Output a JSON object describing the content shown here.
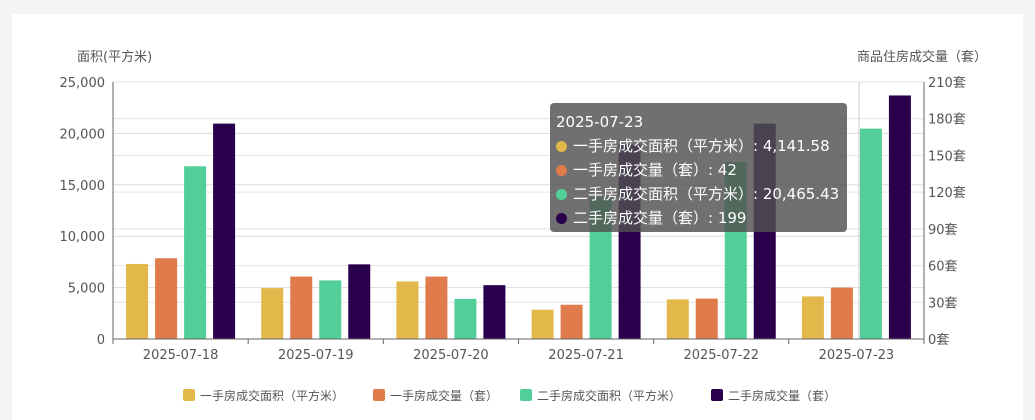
{
  "chart_data": {
    "type": "bar",
    "categories": [
      "2025-07-18",
      "2025-07-19",
      "2025-07-20",
      "2025-07-21",
      "2025-07-22",
      "2025-07-23"
    ],
    "y_left": {
      "label": "面积(平方米)",
      "ylim": [
        0,
        25000
      ],
      "ticks": [
        "0",
        "5,000",
        "10,000",
        "15,000",
        "20,000",
        "25,000"
      ]
    },
    "y_right": {
      "label": "商品住房成交量（套）",
      "ylim": [
        0,
        210
      ],
      "ticks": [
        "0套",
        "30套",
        "60套",
        "90套",
        "120套",
        "150套",
        "180套",
        "210套"
      ]
    },
    "series": [
      {
        "name": "一手房成交面积（平方米）",
        "axis": "left",
        "color": "#e3b84b",
        "values": [
          7300,
          4950,
          5600,
          2850,
          3850,
          4141.58
        ]
      },
      {
        "name": "一手房成交量（套）",
        "axis": "right",
        "color": "#e07b4c",
        "values": [
          66,
          51,
          51,
          28,
          33,
          42
        ]
      },
      {
        "name": "二手房成交面积（平方米）",
        "axis": "left",
        "color": "#52cf98",
        "values": [
          16800,
          5700,
          3900,
          13800,
          17200,
          20465.43
        ]
      },
      {
        "name": "二手房成交量（套）",
        "axis": "right",
        "color": "#2a004d",
        "values": [
          176,
          61,
          44,
          159,
          176,
          199
        ]
      }
    ],
    "grid": true,
    "legend_position": "bottom"
  },
  "tooltip": {
    "title": "2025-07-23",
    "rows": [
      {
        "label": "一手房成交面积（平方米）: 4,141.58",
        "color": "#e3b84b"
      },
      {
        "label": "一手房成交量（套）: 42",
        "color": "#e07b4c"
      },
      {
        "label": "二手房成交面积（平方米）: 20,465.43",
        "color": "#52cf98"
      },
      {
        "label": "二手房成交量（套）: 199",
        "color": "#2a004d"
      }
    ]
  }
}
